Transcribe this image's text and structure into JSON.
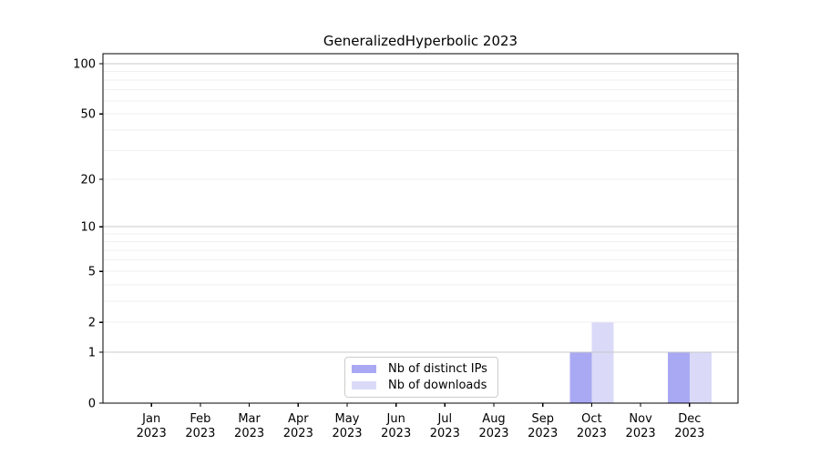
{
  "chart_data": {
    "type": "bar",
    "title": "GeneralizedHyperbolic 2023",
    "categories": [
      "Jan 2023",
      "Feb 2023",
      "Mar 2023",
      "Apr 2023",
      "May 2023",
      "Jun 2023",
      "Jul 2023",
      "Aug 2023",
      "Sep 2023",
      "Oct 2023",
      "Nov 2023",
      "Dec 2023"
    ],
    "series": [
      {
        "name": "Nb of distinct IPs",
        "color": "#a9a9f3",
        "values": [
          0,
          0,
          0,
          0,
          0,
          0,
          0,
          0,
          0,
          1,
          0,
          1
        ]
      },
      {
        "name": "Nb of downloads",
        "color": "#dadaf8",
        "values": [
          0,
          0,
          0,
          0,
          0,
          0,
          0,
          0,
          0,
          2,
          0,
          1
        ]
      }
    ],
    "xlabel": "",
    "ylabel": "",
    "yscale": "log1p",
    "ylim": [
      0,
      115
    ],
    "yticks_labeled": [
      0,
      1,
      2,
      5,
      10,
      20,
      50,
      100
    ],
    "major_gridlines": [
      1,
      10,
      100
    ],
    "minor_gridlines": [
      2,
      3,
      4,
      5,
      6,
      7,
      8,
      9,
      20,
      30,
      40,
      50,
      60,
      70,
      80,
      90
    ],
    "grid": true,
    "legend_position": "lower center",
    "colors": {
      "axis": "#000000",
      "text": "#000000",
      "major_grid": "#c4c4c4",
      "minor_grid": "#ebebeb",
      "background": "#ffffff"
    }
  }
}
